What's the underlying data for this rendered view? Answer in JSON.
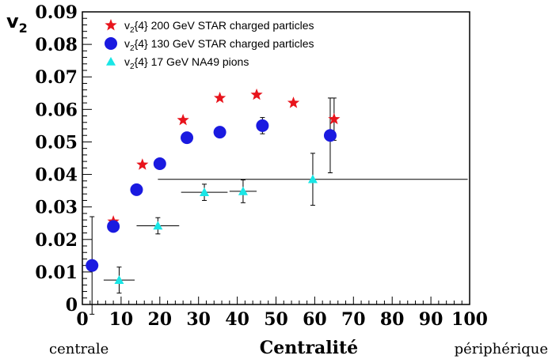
{
  "chart_data": {
    "type": "scatter",
    "ylabel": "v",
    "ylabel_sub": "2",
    "xlim": [
      0,
      100
    ],
    "ylim": [
      0,
      0.09
    ],
    "x_ticks": [
      "0",
      "10",
      "20",
      "30",
      "40",
      "50",
      "60",
      "70",
      "80",
      "90",
      "100"
    ],
    "y_ticks": [
      "0",
      "0.01",
      "0.02",
      "0.03",
      "0.04",
      "0.05",
      "0.06",
      "0.07",
      "0.08",
      "0.09"
    ],
    "legend_position": "top-left",
    "series": [
      {
        "name": "v2{4} 200 GeV STAR charged particles",
        "label_main": "v",
        "label_sub": "2",
        "label_rest": "{4} 200 GeV STAR charged particles",
        "marker": "star",
        "color": "#e8141c",
        "points": [
          {
            "x": 8,
            "y": 0.0255
          },
          {
            "x": 15.5,
            "y": 0.043
          },
          {
            "x": 26,
            "y": 0.0567
          },
          {
            "x": 35.5,
            "y": 0.0635
          },
          {
            "x": 45,
            "y": 0.0645
          },
          {
            "x": 54.5,
            "y": 0.062
          },
          {
            "x": 65,
            "y": 0.057,
            "yerr": 0.0065
          }
        ]
      },
      {
        "name": "v2{4} 130 GeV STAR charged particles",
        "label_main": "v",
        "label_sub": "2",
        "label_rest": "{4} 130 GeV STAR charged particles",
        "marker": "circle",
        "color": "#1a1ae0",
        "points": [
          {
            "x": 2.5,
            "y": 0.012,
            "yerr": 0.015
          },
          {
            "x": 8,
            "y": 0.024,
            "yerr": 0.0015
          },
          {
            "x": 14,
            "y": 0.0353
          },
          {
            "x": 20,
            "y": 0.0433
          },
          {
            "x": 27,
            "y": 0.0513
          },
          {
            "x": 35.5,
            "y": 0.053
          },
          {
            "x": 46.5,
            "y": 0.055,
            "yerr": 0.0025
          },
          {
            "x": 64,
            "y": 0.052,
            "yerr": 0.0115
          }
        ]
      },
      {
        "name": "v2{4} 17 GeV NA49 pions",
        "label_main": "v",
        "label_sub": "2",
        "label_rest": "{4} 17 GeV NA49 pions",
        "marker": "triangle",
        "color": "#19e6e6",
        "points": [
          {
            "x": 9.5,
            "y": 0.0075,
            "xerr": 4,
            "yerr": 0.004
          },
          {
            "x": 19.5,
            "y": 0.0242,
            "xerr": 5.5,
            "yerr": 0.0025
          },
          {
            "x": 31.5,
            "y": 0.0345,
            "xerr": 6,
            "yerr": 0.0025
          },
          {
            "x": 41.5,
            "y": 0.0348,
            "xerr": 3.5,
            "yerr": 0.0035
          },
          {
            "x": 59.5,
            "y": 0.0385,
            "xerr": 40,
            "yerr": 0.008
          }
        ]
      }
    ]
  },
  "footer": {
    "left": "centrale",
    "center": "Centralité",
    "right": "périphérique"
  }
}
